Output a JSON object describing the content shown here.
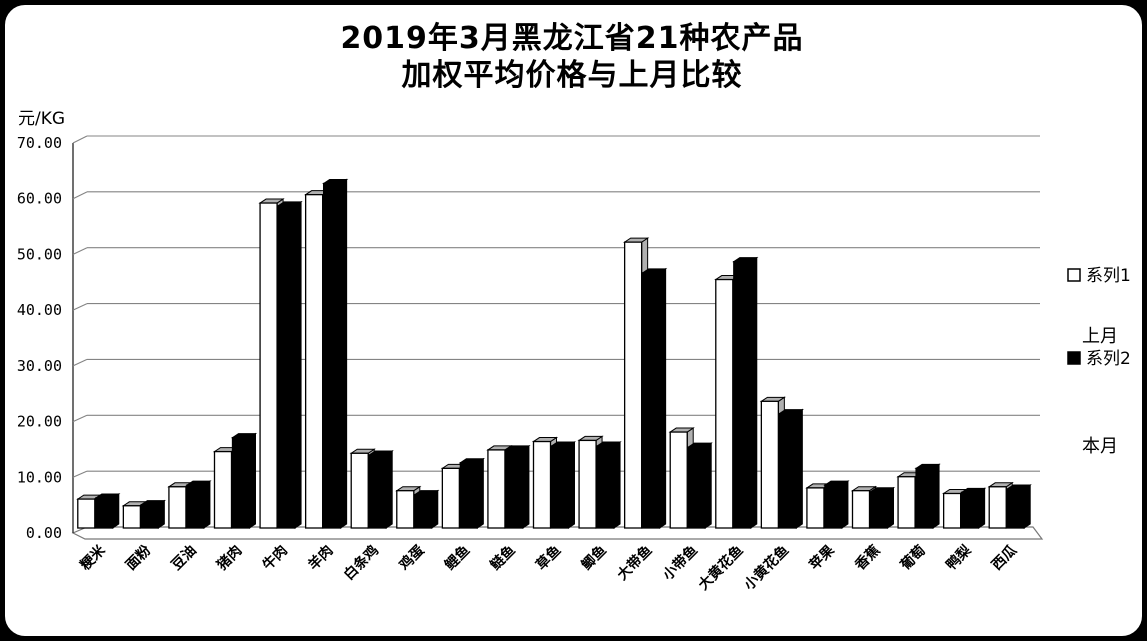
{
  "chart": {
    "title_line1": "2019年3月黑龙江省21种农产品",
    "title_line2": "加权平均价格与上月比较",
    "unit_label": "元/KG"
  },
  "legend": {
    "series1_label": "系列1",
    "series2_label": "系列2",
    "series1_annotation": "上月",
    "series2_annotation": "本月"
  },
  "chart_data": {
    "type": "bar",
    "title": "2019年3月黑龙江省21种农产品 加权平均价格与上月比较",
    "xlabel": "",
    "ylabel": "元/KG",
    "ylim": [
      0,
      70
    ],
    "ytick_interval": 10,
    "ytick_labels": [
      "0.00",
      "10.00",
      "20.00",
      "30.00",
      "40.00",
      "50.00",
      "60.00",
      "70.00"
    ],
    "grid": true,
    "style": "3d-column",
    "legend_position": "right",
    "categories": [
      "粳米",
      "面粉",
      "豆油",
      "猪肉",
      "牛肉",
      "羊肉",
      "白条鸡",
      "鸡蛋",
      "鲤鱼",
      "鲢鱼",
      "草鱼",
      "鲫鱼",
      "大带鱼",
      "小带鱼",
      "大黄花鱼",
      "小黄花鱼",
      "苹果",
      "香蕉",
      "葡萄",
      "鸭梨",
      "西瓜"
    ],
    "series": [
      {
        "name": "系列1",
        "annotation": "上月",
        "fill": "#ffffff",
        "values": [
          5.0,
          3.8,
          7.2,
          13.5,
          58.0,
          59.5,
          13.2,
          6.5,
          10.5,
          13.8,
          15.3,
          15.5,
          51.0,
          17.0,
          44.3,
          22.5,
          7.0,
          6.5,
          9.0,
          6.0,
          7.2
        ]
      },
      {
        "name": "系列2",
        "annotation": "本月",
        "fill": "#000000",
        "values": [
          5.2,
          4.0,
          7.5,
          16.0,
          57.5,
          61.5,
          12.9,
          5.8,
          11.5,
          13.8,
          14.5,
          14.5,
          45.5,
          14.3,
          47.5,
          20.3,
          7.5,
          6.3,
          10.5,
          6.2,
          6.8
        ]
      }
    ],
    "colors": {
      "background": "#ffffff",
      "outer_frame": "#000000",
      "gridline": "#848484",
      "axis": "#333333",
      "floor_outline": "#777777",
      "bar_top_face": "#b0b0b0",
      "bar_outline": "#000000"
    }
  }
}
